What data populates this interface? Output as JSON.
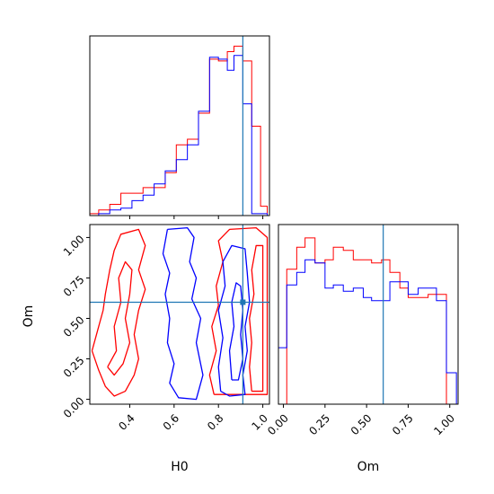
{
  "chart_data": [
    {
      "panel": "H0 marginal histogram",
      "type": "step-histogram",
      "xlim": [
        0.22,
        1.03
      ],
      "truth": 0.91,
      "bin_edges": [
        0.22,
        0.26,
        0.31,
        0.36,
        0.41,
        0.46,
        0.51,
        0.56,
        0.61,
        0.66,
        0.71,
        0.76,
        0.8,
        0.84,
        0.87,
        0.91,
        0.95,
        0.99,
        1.02
      ],
      "series": [
        {
          "color": "#ff0000",
          "values": [
            1,
            3,
            6,
            12,
            12,
            15,
            15,
            23,
            38,
            41,
            55,
            84,
            83,
            88,
            91,
            83,
            48,
            5
          ]
        },
        {
          "color": "#0000ff",
          "values": [
            0,
            1,
            3,
            4,
            8,
            11,
            17,
            24,
            30,
            38,
            56,
            85,
            84,
            78,
            86,
            60,
            1,
            1
          ]
        }
      ]
    },
    {
      "panel": "Om vs H0 contours",
      "type": "contour",
      "xlabel": "H0",
      "ylabel": "Om",
      "xlim": [
        0.22,
        1.03
      ],
      "ylim": [
        -0.03,
        1.08
      ],
      "xticks": [
        "0.4",
        "0.6",
        "0.8",
        "1.0"
      ],
      "yticks": [
        "0.00",
        "0.25",
        "0.50",
        "0.75",
        "1.00"
      ],
      "truth": {
        "x": 0.91,
        "y": 0.6
      },
      "contours": [
        {
          "color": "#ff0000",
          "region": "outer-left",
          "points": [
            [
              0.23,
              0.3
            ],
            [
              0.25,
              0.4
            ],
            [
              0.28,
              0.55
            ],
            [
              0.29,
              0.65
            ],
            [
              0.31,
              0.8
            ],
            [
              0.33,
              0.92
            ],
            [
              0.36,
              1.02
            ],
            [
              0.44,
              1.05
            ],
            [
              0.47,
              0.95
            ],
            [
              0.44,
              0.8
            ],
            [
              0.47,
              0.68
            ],
            [
              0.44,
              0.55
            ],
            [
              0.42,
              0.4
            ],
            [
              0.44,
              0.25
            ],
            [
              0.42,
              0.15
            ],
            [
              0.38,
              0.05
            ],
            [
              0.33,
              0.02
            ],
            [
              0.29,
              0.08
            ],
            [
              0.26,
              0.18
            ],
            [
              0.23,
              0.3
            ]
          ]
        },
        {
          "color": "#ff0000",
          "region": "inner-left",
          "points": [
            [
              0.3,
              0.2
            ],
            [
              0.34,
              0.3
            ],
            [
              0.33,
              0.45
            ],
            [
              0.36,
              0.6
            ],
            [
              0.35,
              0.75
            ],
            [
              0.38,
              0.85
            ],
            [
              0.41,
              0.8
            ],
            [
              0.4,
              0.65
            ],
            [
              0.38,
              0.5
            ],
            [
              0.4,
              0.35
            ],
            [
              0.37,
              0.22
            ],
            [
              0.33,
              0.15
            ],
            [
              0.3,
              0.2
            ]
          ]
        },
        {
          "color": "#ff0000",
          "region": "outer-right",
          "points": [
            [
              0.78,
              0.03
            ],
            [
              0.76,
              0.15
            ],
            [
              0.79,
              0.3
            ],
            [
              0.77,
              0.45
            ],
            [
              0.8,
              0.58
            ],
            [
              0.79,
              0.7
            ],
            [
              0.82,
              0.85
            ],
            [
              0.8,
              0.98
            ],
            [
              0.85,
              1.05
            ],
            [
              0.97,
              1.06
            ],
            [
              1.02,
              1.0
            ],
            [
              1.02,
              0.03
            ],
            [
              0.78,
              0.03
            ]
          ]
        },
        {
          "color": "#ff0000",
          "region": "inner-right",
          "points": [
            [
              0.95,
              0.05
            ],
            [
              0.94,
              0.2
            ],
            [
              0.95,
              0.35
            ],
            [
              0.94,
              0.5
            ],
            [
              0.96,
              0.65
            ],
            [
              0.95,
              0.8
            ],
            [
              0.97,
              0.95
            ],
            [
              1.0,
              0.95
            ],
            [
              1.0,
              0.05
            ],
            [
              0.95,
              0.05
            ]
          ]
        },
        {
          "color": "#0000ff",
          "region": "outer",
          "points": [
            [
              0.57,
              1.05
            ],
            [
              0.55,
              0.9
            ],
            [
              0.58,
              0.78
            ],
            [
              0.56,
              0.65
            ],
            [
              0.58,
              0.5
            ],
            [
              0.57,
              0.35
            ],
            [
              0.6,
              0.22
            ],
            [
              0.58,
              0.1
            ],
            [
              0.62,
              0.01
            ],
            [
              0.7,
              0.0
            ],
            [
              0.73,
              0.15
            ],
            [
              0.7,
              0.35
            ],
            [
              0.72,
              0.5
            ],
            [
              0.68,
              0.62
            ],
            [
              0.7,
              0.75
            ],
            [
              0.67,
              0.85
            ],
            [
              0.69,
              1.0
            ],
            [
              0.66,
              1.06
            ],
            [
              0.57,
              1.05
            ]
          ]
        },
        {
          "color": "#0000ff",
          "region": "inner",
          "points": [
            [
              0.81,
              0.05
            ],
            [
              0.8,
              0.2
            ],
            [
              0.82,
              0.38
            ],
            [
              0.8,
              0.55
            ],
            [
              0.83,
              0.7
            ],
            [
              0.82,
              0.85
            ],
            [
              0.86,
              0.95
            ],
            [
              0.92,
              0.93
            ],
            [
              0.93,
              0.78
            ],
            [
              0.94,
              0.6
            ],
            [
              0.92,
              0.45
            ],
            [
              0.93,
              0.3
            ],
            [
              0.91,
              0.15
            ],
            [
              0.92,
              0.03
            ],
            [
              0.85,
              0.02
            ],
            [
              0.81,
              0.05
            ]
          ]
        },
        {
          "color": "#0000ff",
          "region": "core",
          "points": [
            [
              0.86,
              0.12
            ],
            [
              0.85,
              0.3
            ],
            [
              0.87,
              0.45
            ],
            [
              0.86,
              0.6
            ],
            [
              0.88,
              0.72
            ],
            [
              0.9,
              0.7
            ],
            [
              0.91,
              0.55
            ],
            [
              0.9,
              0.4
            ],
            [
              0.91,
              0.25
            ],
            [
              0.89,
              0.12
            ],
            [
              0.86,
              0.12
            ]
          ]
        }
      ]
    },
    {
      "panel": "Om marginal histogram",
      "type": "step-histogram",
      "xlabel": "Om",
      "xlim": [
        -0.03,
        1.05
      ],
      "xticks": [
        "0.00",
        "0.25",
        "0.50",
        "0.75",
        "1.00"
      ],
      "truth": 0.6,
      "bin_edges": [
        -0.03,
        0.02,
        0.08,
        0.13,
        0.19,
        0.25,
        0.3,
        0.36,
        0.42,
        0.48,
        0.53,
        0.59,
        0.64,
        0.7,
        0.75,
        0.81,
        0.87,
        0.92,
        0.98,
        1.04
      ],
      "series": [
        {
          "color": "#ff0000",
          "values": [
            0,
            43,
            50,
            53,
            45,
            46,
            50,
            49,
            46,
            46,
            45,
            46,
            42,
            37,
            34,
            34,
            35,
            35,
            0
          ]
        },
        {
          "color": "#0000ff",
          "values": [
            18,
            38,
            42,
            46,
            45,
            37,
            38,
            36,
            37,
            34,
            33,
            33,
            39,
            39,
            35,
            37,
            37,
            33,
            10
          ]
        }
      ]
    }
  ]
}
